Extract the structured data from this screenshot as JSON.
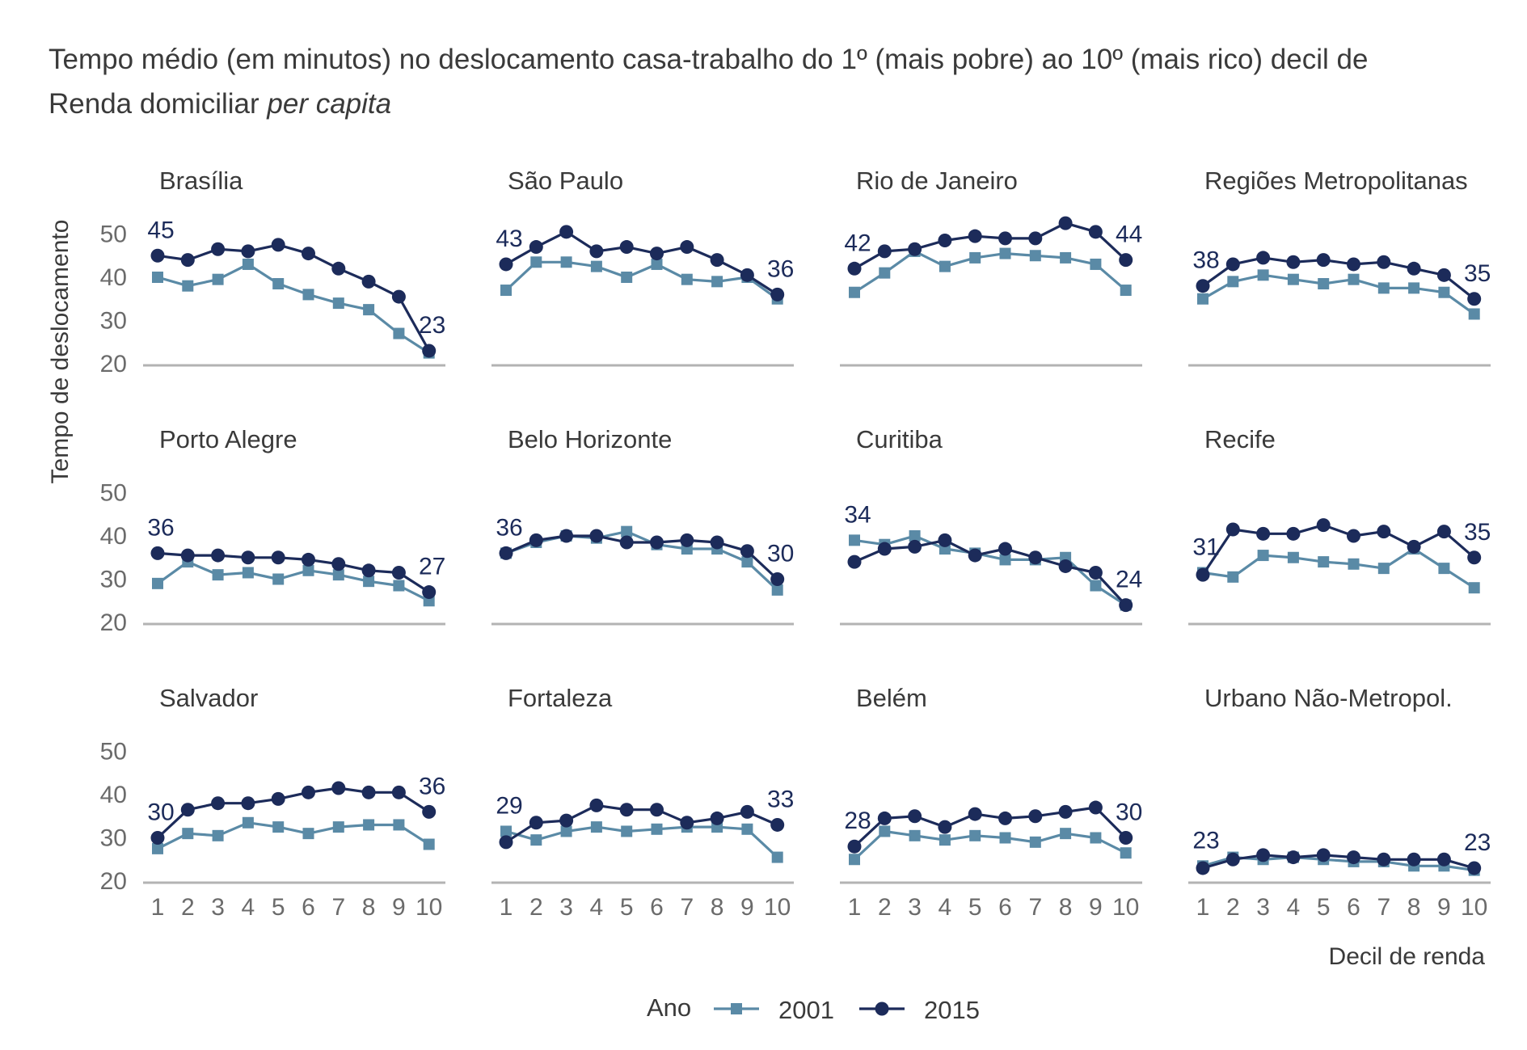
{
  "title": {
    "line1": "Tempo médio (em minutos) no deslocamento casa-trabalho do 1º (mais pobre) ao 10º (mais rico) decil de",
    "line2_prefix": "Renda domiciliar ",
    "line2_italic": "per capita"
  },
  "colors": {
    "s2001": "#5a8aa6",
    "s2015": "#1c2b5a",
    "baseline": "#b3b3b3"
  },
  "chart_data": {
    "type": "line",
    "xlabel": "Decil de renda",
    "ylabel": "Tempo de deslocamento",
    "x": [
      1,
      2,
      3,
      4,
      5,
      6,
      7,
      8,
      9,
      10
    ],
    "yticks": [
      20,
      30,
      40,
      50
    ],
    "ylim": [
      20,
      55
    ],
    "legend": {
      "title": "Ano",
      "placement": "bottom",
      "entries": [
        "2001",
        "2015"
      ]
    },
    "panels": [
      {
        "name": "Brasília",
        "series": [
          {
            "name": "2001",
            "marker": "square",
            "values": [
              40,
              38,
              39.5,
              43,
              38.5,
              36,
              34,
              32.5,
              27,
              22.5
            ]
          },
          {
            "name": "2015",
            "marker": "circle",
            "values": [
              45,
              44,
              46.5,
              46,
              47.5,
              45.5,
              42,
              39,
              35.5,
              23
            ]
          }
        ],
        "labels": {
          "first": "45",
          "last": "23"
        }
      },
      {
        "name": "São Paulo",
        "series": [
          {
            "name": "2001",
            "marker": "square",
            "values": [
              37,
              43.5,
              43.5,
              42.5,
              40,
              43,
              39.5,
              39,
              40,
              35
            ]
          },
          {
            "name": "2015",
            "marker": "circle",
            "values": [
              43,
              47,
              50.5,
              46,
              47,
              45.5,
              47,
              44,
              40.5,
              36
            ]
          }
        ],
        "labels": {
          "first": "43",
          "last": "36"
        }
      },
      {
        "name": "Rio de Janeiro",
        "series": [
          {
            "name": "2001",
            "marker": "square",
            "values": [
              36.5,
              41,
              46,
              42.5,
              44.5,
              45.5,
              45,
              44.5,
              43,
              37
            ]
          },
          {
            "name": "2015",
            "marker": "circle",
            "values": [
              42,
              46,
              46.5,
              48.5,
              49.5,
              49,
              49,
              52.5,
              50.5,
              44
            ]
          }
        ],
        "labels": {
          "first": "42",
          "last": "44"
        }
      },
      {
        "name": "Regiões Metropolitanas",
        "series": [
          {
            "name": "2001",
            "marker": "square",
            "values": [
              35,
              39,
              40.5,
              39.5,
              38.5,
              39.5,
              37.5,
              37.5,
              36.5,
              31.5
            ]
          },
          {
            "name": "2015",
            "marker": "circle",
            "values": [
              38,
              43,
              44.5,
              43.5,
              44,
              43,
              43.5,
              42,
              40.5,
              35
            ]
          }
        ],
        "labels": {
          "first": "38",
          "last": "35"
        }
      },
      {
        "name": "Porto Alegre",
        "series": [
          {
            "name": "2001",
            "marker": "square",
            "values": [
              29,
              34,
              31,
              31.5,
              30,
              32,
              31,
              29.5,
              28.5,
              25
            ]
          },
          {
            "name": "2015",
            "marker": "circle",
            "values": [
              36,
              35.5,
              35.5,
              35,
              35,
              34.5,
              33.5,
              32,
              31.5,
              27
            ]
          }
        ],
        "labels": {
          "first": "36",
          "last": "27"
        }
      },
      {
        "name": "Belo Horizonte",
        "series": [
          {
            "name": "2001",
            "marker": "square",
            "values": [
              36,
              38.5,
              40,
              39.5,
              41,
              38,
              37,
              37,
              34,
              27.5
            ]
          },
          {
            "name": "2015",
            "marker": "circle",
            "values": [
              36,
              39,
              40,
              40,
              38.5,
              38.5,
              39,
              38.5,
              36.5,
              30
            ]
          }
        ],
        "labels": {
          "first": "36",
          "last": "30"
        }
      },
      {
        "name": "Curitiba",
        "series": [
          {
            "name": "2001",
            "marker": "square",
            "values": [
              39,
              38,
              40,
              37,
              36,
              34.5,
              34.5,
              35,
              28.5,
              24
            ]
          },
          {
            "name": "2015",
            "marker": "circle",
            "values": [
              34,
              37,
              37.5,
              39,
              35.5,
              37,
              35,
              33,
              31.5,
              24
            ]
          }
        ],
        "labels": {
          "first": "34",
          "last": "24"
        }
      },
      {
        "name": "Recife",
        "series": [
          {
            "name": "2001",
            "marker": "square",
            "values": [
              31.5,
              30.5,
              35.5,
              35,
              34,
              33.5,
              32.5,
              37,
              32.5,
              28
            ]
          },
          {
            "name": "2015",
            "marker": "circle",
            "values": [
              31,
              41.5,
              40.5,
              40.5,
              42.5,
              40,
              41,
              37.5,
              41,
              35
            ]
          }
        ],
        "labels": {
          "first": "31",
          "last": "35"
        }
      },
      {
        "name": "Salvador",
        "series": [
          {
            "name": "2001",
            "marker": "square",
            "values": [
              27.5,
              31,
              30.5,
              33.5,
              32.5,
              31,
              32.5,
              33,
              33,
              28.5
            ]
          },
          {
            "name": "2015",
            "marker": "circle",
            "values": [
              30,
              36.5,
              38,
              38,
              39,
              40.5,
              41.5,
              40.5,
              40.5,
              36
            ]
          }
        ],
        "labels": {
          "first": "30",
          "last": "36"
        }
      },
      {
        "name": "Fortaleza",
        "series": [
          {
            "name": "2001",
            "marker": "square",
            "values": [
              31.5,
              29.5,
              31.5,
              32.5,
              31.5,
              32,
              32.5,
              32.5,
              32,
              25.5
            ]
          },
          {
            "name": "2015",
            "marker": "circle",
            "values": [
              29,
              33.5,
              34,
              37.5,
              36.5,
              36.5,
              33.5,
              34.5,
              36,
              33
            ]
          }
        ],
        "labels": {
          "first": "29",
          "last": "33"
        }
      },
      {
        "name": "Belém",
        "series": [
          {
            "name": "2001",
            "marker": "square",
            "values": [
              25,
              31.5,
              30.5,
              29.5,
              30.5,
              30,
              29,
              31,
              30,
              26.5
            ]
          },
          {
            "name": "2015",
            "marker": "circle",
            "values": [
              28,
              34.5,
              35,
              32.5,
              35.5,
              34.5,
              35,
              36,
              37,
              30
            ]
          }
        ],
        "labels": {
          "first": "28",
          "last": "30"
        }
      },
      {
        "name": "Urbano Não-Metropol.",
        "series": [
          {
            "name": "2001",
            "marker": "square",
            "values": [
              23.5,
              25.5,
              25,
              25.5,
              25,
              24.5,
              24.5,
              23.5,
              23.5,
              22.5
            ]
          },
          {
            "name": "2015",
            "marker": "circle",
            "values": [
              23,
              25,
              26,
              25.5,
              26,
              25.5,
              25,
              25,
              25,
              23
            ]
          }
        ],
        "labels": {
          "first": "23",
          "last": "23"
        }
      }
    ]
  }
}
